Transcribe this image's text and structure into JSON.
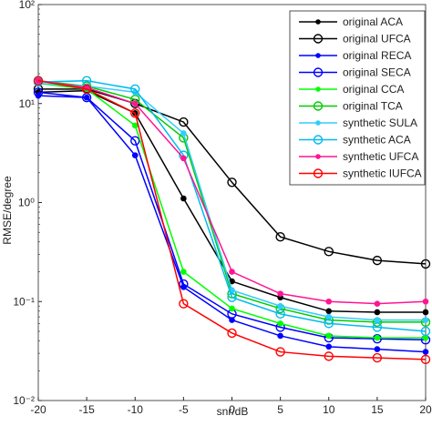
{
  "chart_data": {
    "type": "line",
    "x": [
      -20,
      -15,
      -10,
      -5,
      0,
      5,
      10,
      15,
      20
    ],
    "xlabel": "snr/dB",
    "ylabel": "RMSE/degree",
    "xlim": [
      -20,
      20
    ],
    "xticks": [
      -20,
      -15,
      -10,
      -5,
      0,
      5,
      10,
      15,
      20
    ],
    "ylim": [
      0.01,
      100
    ],
    "log_y": true,
    "yticks": [
      {
        "value": 0.01,
        "label": "10⁻²"
      },
      {
        "value": 0.1,
        "label": "10⁻¹"
      },
      {
        "value": 1,
        "label": "10⁰"
      },
      {
        "value": 10,
        "label": "10¹"
      },
      {
        "value": 100,
        "label": "10²"
      }
    ],
    "legend": "upper right",
    "series": [
      {
        "name": "original ACA",
        "color": "#000000",
        "marker": "filled",
        "values": [
          13,
          13.5,
          8,
          1.1,
          0.16,
          0.11,
          0.08,
          0.078,
          0.078
        ]
      },
      {
        "name": "original UFCA",
        "color": "#000000",
        "marker": "open",
        "values": [
          14,
          14,
          10,
          6.5,
          1.6,
          0.45,
          0.32,
          0.26,
          0.24
        ]
      },
      {
        "name": "original RECA",
        "color": "#0000ff",
        "marker": "filled",
        "values": [
          12,
          11.5,
          3,
          0.14,
          0.065,
          0.045,
          0.035,
          0.033,
          0.031
        ]
      },
      {
        "name": "original SECA",
        "color": "#0000ff",
        "marker": "open",
        "values": [
          13,
          11.5,
          4.2,
          0.15,
          0.075,
          0.055,
          0.043,
          0.042,
          0.041
        ]
      },
      {
        "name": "original CCA",
        "color": "#00ff00",
        "marker": "filled",
        "values": [
          16,
          14,
          6,
          0.2,
          0.085,
          0.06,
          0.045,
          0.043,
          0.043
        ]
      },
      {
        "name": "original TCA",
        "color": "#00cc00",
        "marker": "open",
        "values": [
          17,
          15,
          11,
          4.5,
          0.12,
          0.085,
          0.065,
          0.062,
          0.062
        ]
      },
      {
        "name": "synthetic SULA",
        "color": "#33ccff",
        "marker": "filled",
        "values": [
          16,
          15,
          13,
          5,
          0.13,
          0.09,
          0.07,
          0.065,
          0.065
        ]
      },
      {
        "name": "synthetic ACA",
        "color": "#00bbee",
        "marker": "open",
        "values": [
          16.5,
          17,
          14,
          3,
          0.11,
          0.075,
          0.06,
          0.055,
          0.05
        ]
      },
      {
        "name": "synthetic UFCA",
        "color": "#ff1493",
        "marker": "filled",
        "values": [
          17,
          14.5,
          10,
          2.8,
          0.2,
          0.12,
          0.1,
          0.095,
          0.1
        ]
      },
      {
        "name": "synthetic IUFCA",
        "color": "#ff0000",
        "marker": "open",
        "values": [
          17,
          14,
          8,
          0.095,
          0.048,
          0.031,
          0.028,
          0.027,
          0.026
        ]
      }
    ]
  }
}
